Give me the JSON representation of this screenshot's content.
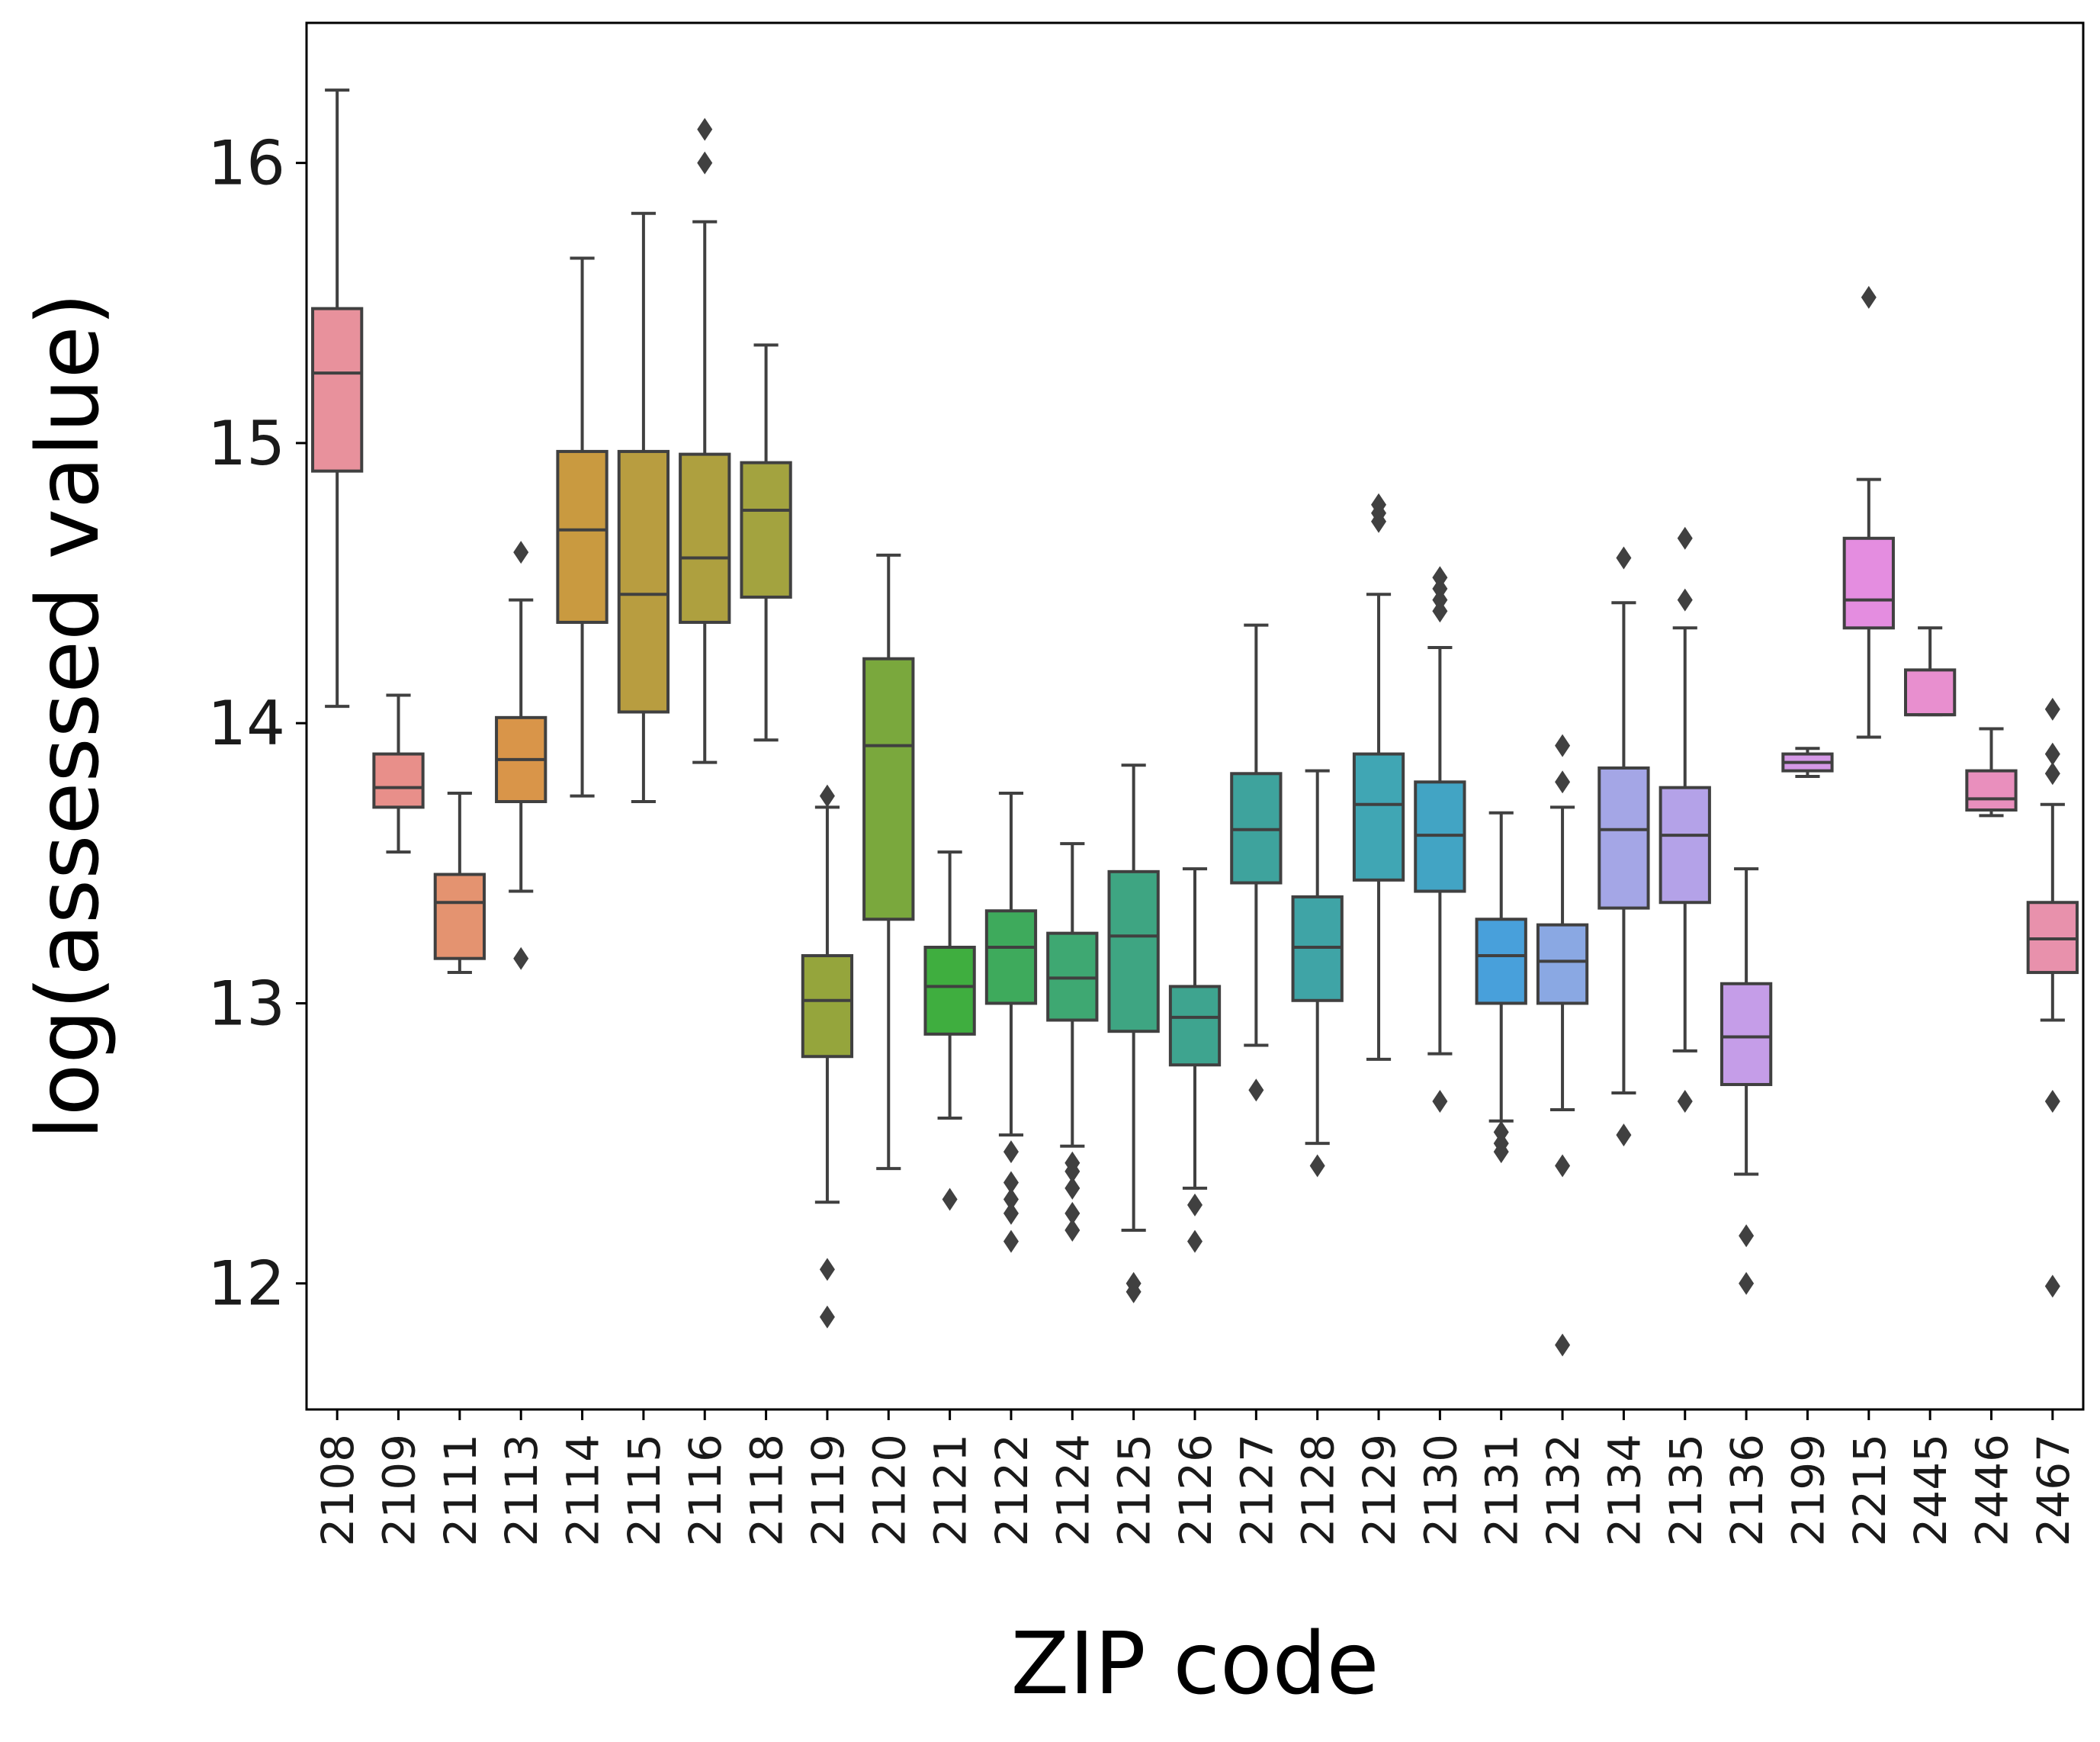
{
  "chart_data": {
    "type": "box",
    "title": "",
    "xlabel": "ZIP code",
    "ylabel": "log(assessed value)",
    "ylim": [
      11.55,
      16.5
    ],
    "yticks": [
      12,
      13,
      14,
      15,
      16
    ],
    "grid": false,
    "legend": "none",
    "box_edge_color": "#404040",
    "categories": [
      "2108",
      "2109",
      "2111",
      "2113",
      "2114",
      "2115",
      "2116",
      "2118",
      "2119",
      "2120",
      "2121",
      "2122",
      "2124",
      "2125",
      "2126",
      "2127",
      "2128",
      "2129",
      "2130",
      "2131",
      "2132",
      "2134",
      "2135",
      "2136",
      "2199",
      "2215",
      "2445",
      "2446",
      "2467"
    ],
    "series": [
      {
        "zip": "2108",
        "color": "#e8919c",
        "q1": 14.9,
        "median": 15.25,
        "q3": 15.48,
        "whisker_low": 14.06,
        "whisker_high": 16.26,
        "outliers": []
      },
      {
        "zip": "2109",
        "color": "#e88f8a",
        "q1": 13.7,
        "median": 13.77,
        "q3": 13.89,
        "whisker_low": 13.54,
        "whisker_high": 14.1,
        "outliers": []
      },
      {
        "zip": "2111",
        "color": "#e49370",
        "q1": 13.16,
        "median": 13.36,
        "q3": 13.46,
        "whisker_low": 13.11,
        "whisker_high": 13.75,
        "outliers": []
      },
      {
        "zip": "2113",
        "color": "#d99549",
        "q1": 13.72,
        "median": 13.87,
        "q3": 14.02,
        "whisker_low": 13.4,
        "whisker_high": 14.44,
        "outliers": [
          14.61,
          13.16
        ]
      },
      {
        "zip": "2114",
        "color": "#c99a40",
        "q1": 14.36,
        "median": 14.69,
        "q3": 14.97,
        "whisker_low": 13.74,
        "whisker_high": 15.66,
        "outliers": []
      },
      {
        "zip": "2115",
        "color": "#b89d40",
        "q1": 14.04,
        "median": 14.46,
        "q3": 14.97,
        "whisker_low": 13.72,
        "whisker_high": 15.82,
        "outliers": []
      },
      {
        "zip": "2116",
        "color": "#aea03f",
        "q1": 14.36,
        "median": 14.59,
        "q3": 14.96,
        "whisker_low": 13.86,
        "whisker_high": 15.79,
        "outliers": [
          16.12,
          16.0
        ]
      },
      {
        "zip": "2118",
        "color": "#a3a33f",
        "q1": 14.45,
        "median": 14.76,
        "q3": 14.93,
        "whisker_low": 13.94,
        "whisker_high": 15.35,
        "outliers": []
      },
      {
        "zip": "2119",
        "color": "#95a53c",
        "q1": 12.81,
        "median": 13.01,
        "q3": 13.17,
        "whisker_low": 12.29,
        "whisker_high": 13.7,
        "outliers": [
          13.74,
          12.05,
          11.88
        ]
      },
      {
        "zip": "2120",
        "color": "#7aa83d",
        "q1": 13.3,
        "median": 13.92,
        "q3": 14.23,
        "whisker_low": 12.41,
        "whisker_high": 14.6,
        "outliers": []
      },
      {
        "zip": "2121",
        "color": "#3fae3f",
        "q1": 12.89,
        "median": 13.06,
        "q3": 13.2,
        "whisker_low": 12.59,
        "whisker_high": 13.54,
        "outliers": [
          12.3
        ]
      },
      {
        "zip": "2122",
        "color": "#3eaa5c",
        "q1": 13.0,
        "median": 13.2,
        "q3": 13.33,
        "whisker_low": 12.53,
        "whisker_high": 13.75,
        "outliers": [
          12.47,
          12.36,
          12.3,
          12.25,
          12.15
        ]
      },
      {
        "zip": "2124",
        "color": "#3ea872",
        "q1": 12.94,
        "median": 13.09,
        "q3": 13.25,
        "whisker_low": 12.49,
        "whisker_high": 13.57,
        "outliers": [
          12.43,
          12.4,
          12.34,
          12.25,
          12.19
        ]
      },
      {
        "zip": "2125",
        "color": "#3ea582",
        "q1": 12.9,
        "median": 13.24,
        "q3": 13.47,
        "whisker_low": 12.19,
        "whisker_high": 13.85,
        "outliers": [
          12.0,
          11.97
        ]
      },
      {
        "zip": "2126",
        "color": "#3ea48f",
        "q1": 12.78,
        "median": 12.95,
        "q3": 13.06,
        "whisker_low": 12.34,
        "whisker_high": 13.48,
        "outliers": [
          12.28,
          12.15
        ]
      },
      {
        "zip": "2127",
        "color": "#3ea39d",
        "q1": 13.43,
        "median": 13.62,
        "q3": 13.82,
        "whisker_low": 12.85,
        "whisker_high": 14.35,
        "outliers": [
          12.69
        ]
      },
      {
        "zip": "2128",
        "color": "#3fa4a6",
        "q1": 13.01,
        "median": 13.2,
        "q3": 13.38,
        "whisker_low": 12.5,
        "whisker_high": 13.83,
        "outliers": [
          12.42
        ]
      },
      {
        "zip": "2129",
        "color": "#40a6b4",
        "q1": 13.44,
        "median": 13.71,
        "q3": 13.89,
        "whisker_low": 12.8,
        "whisker_high": 14.46,
        "outliers": [
          14.78,
          14.75,
          14.72
        ]
      },
      {
        "zip": "2130",
        "color": "#42a4c4",
        "q1": 13.4,
        "median": 13.6,
        "q3": 13.79,
        "whisker_low": 12.82,
        "whisker_high": 14.27,
        "outliers": [
          14.52,
          14.48,
          14.44,
          14.4,
          12.65
        ]
      },
      {
        "zip": "2131",
        "color": "#48a0db",
        "q1": 13.0,
        "median": 13.17,
        "q3": 13.3,
        "whisker_low": 12.58,
        "whisker_high": 13.68,
        "outliers": [
          12.54,
          12.5,
          12.47
        ]
      },
      {
        "zip": "2132",
        "color": "#8aa8e3",
        "q1": 13.0,
        "median": 13.15,
        "q3": 13.28,
        "whisker_low": 12.62,
        "whisker_high": 13.7,
        "outliers": [
          13.92,
          13.79,
          12.42,
          11.78
        ]
      },
      {
        "zip": "2134",
        "color": "#a4a6e6",
        "q1": 13.34,
        "median": 13.62,
        "q3": 13.84,
        "whisker_low": 12.68,
        "whisker_high": 14.43,
        "outliers": [
          14.59,
          12.53
        ]
      },
      {
        "zip": "2135",
        "color": "#b4a2e8",
        "q1": 13.36,
        "median": 13.6,
        "q3": 13.77,
        "whisker_low": 12.83,
        "whisker_high": 14.34,
        "outliers": [
          14.66,
          14.44,
          12.65
        ]
      },
      {
        "zip": "2136",
        "color": "#c59de8",
        "q1": 12.71,
        "median": 12.88,
        "q3": 13.07,
        "whisker_low": 12.39,
        "whisker_high": 13.48,
        "outliers": [
          12.17,
          12.0
        ]
      },
      {
        "zip": "2199",
        "color": "#d498e6",
        "q1": 13.83,
        "median": 13.86,
        "q3": 13.89,
        "whisker_low": 13.81,
        "whisker_high": 13.91,
        "outliers": []
      },
      {
        "zip": "2215",
        "color": "#e48de0",
        "q1": 14.34,
        "median": 14.44,
        "q3": 14.66,
        "whisker_low": 13.95,
        "whisker_high": 14.87,
        "outliers": [
          15.52
        ]
      },
      {
        "zip": "2445",
        "color": "#e88fcf",
        "q1": 14.03,
        "median": 14.03,
        "q3": 14.19,
        "whisker_low": 14.03,
        "whisker_high": 14.34,
        "outliers": []
      },
      {
        "zip": "2446",
        "color": "#e98fbd",
        "q1": 13.69,
        "median": 13.73,
        "q3": 13.83,
        "whisker_low": 13.67,
        "whisker_high": 13.98,
        "outliers": []
      },
      {
        "zip": "2467",
        "color": "#e891ac",
        "q1": 13.11,
        "median": 13.23,
        "q3": 13.36,
        "whisker_low": 12.94,
        "whisker_high": 13.71,
        "outliers": [
          14.05,
          13.89,
          13.82,
          12.65,
          11.99
        ]
      }
    ]
  }
}
